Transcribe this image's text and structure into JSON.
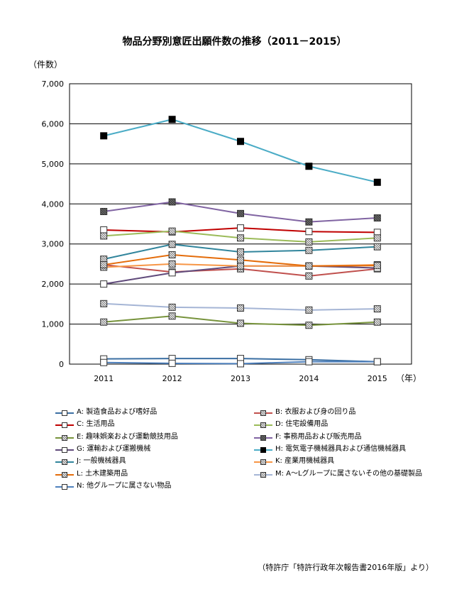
{
  "chart_data": {
    "type": "line",
    "title": "物品分野別意匠出願件数の推移（2011－2015）",
    "ylabel": "（件数）",
    "xlabel": "（年）",
    "ylim": [
      0,
      7000
    ],
    "yticks": [
      "0",
      "1,000",
      "2,000",
      "3,000",
      "4,000",
      "5,000",
      "6,000",
      "7,000"
    ],
    "x": [
      "2011",
      "2012",
      "2013",
      "2014",
      "2015"
    ],
    "grid": true,
    "legend_position": "bottom",
    "series": [
      {
        "name": "A: 製造食品および嗜好品",
        "color": "#3b6fa3",
        "marker": "square-open",
        "values": [
          130,
          140,
          140,
          110,
          60
        ]
      },
      {
        "name": "B: 衣服および身の回り品",
        "color": "#c0504d",
        "marker": "square-hatch",
        "values": [
          2480,
          2300,
          2380,
          2200,
          2380
        ]
      },
      {
        "name": "C: 生活用品",
        "color": "#c00000",
        "marker": "square-open",
        "values": [
          3350,
          3300,
          3400,
          3310,
          3290
        ]
      },
      {
        "name": "D: 住宅設備用品",
        "color": "#9bbb59",
        "marker": "square-hatch",
        "values": [
          3200,
          3320,
          3150,
          3050,
          3150
        ]
      },
      {
        "name": "E: 趣味娯楽および運動競技用品",
        "color": "#77933c",
        "marker": "square-hatch",
        "values": [
          1050,
          1200,
          1020,
          970,
          1050
        ]
      },
      {
        "name": "F: 事務用品および販売用品",
        "color": "#8064a2",
        "marker": "square-dark",
        "values": [
          3810,
          4050,
          3760,
          3550,
          3650
        ]
      },
      {
        "name": "G: 運輸および運搬機械",
        "color": "#604a7b",
        "marker": "square-open",
        "values": [
          2000,
          2280,
          2450,
          2450,
          2400
        ]
      },
      {
        "name": "H: 電気電子機械器具および通信機械器具",
        "color": "#4bacc6",
        "marker": "square-black",
        "values": [
          5700,
          6110,
          5560,
          4940,
          4540
        ]
      },
      {
        "name": "J: 一般機械器具",
        "color": "#31859c",
        "marker": "square-hatch",
        "values": [
          2620,
          2990,
          2800,
          2840,
          2930
        ]
      },
      {
        "name": "K: 産業用機械器具",
        "color": "#f79646",
        "marker": "square-hatch",
        "values": [
          2420,
          2500,
          2450,
          2450,
          2480
        ]
      },
      {
        "name": "L: 土木建築用品",
        "color": "#e46c0a",
        "marker": "square-hatch",
        "values": [
          2480,
          2730,
          2600,
          2450,
          2460
        ]
      },
      {
        "name": "M: A～Lグループに属さないその他の基礎製品",
        "color": "#a5b5d5",
        "marker": "square-hatch",
        "values": [
          1510,
          1420,
          1400,
          1350,
          1380
        ]
      },
      {
        "name": "N: 他グループに属さない物品",
        "color": "#4f81bd",
        "marker": "square-open",
        "values": [
          40,
          20,
          10,
          60,
          60
        ]
      }
    ]
  },
  "source_note": "（特許庁「特許行政年次報告書2016年版」より）"
}
